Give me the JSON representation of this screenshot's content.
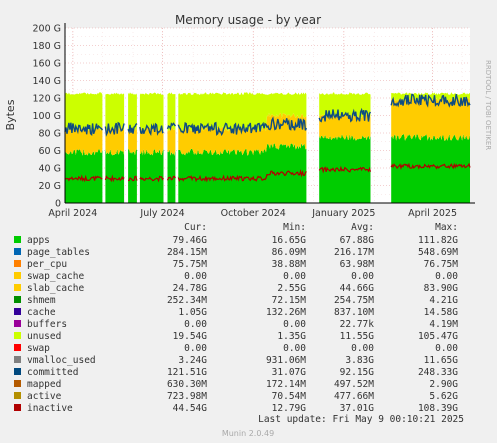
{
  "chart_data": {
    "type": "area",
    "title": "Memory usage - by year",
    "ylabel": "Bytes",
    "ylim": [
      0,
      200
    ],
    "y_unit": "G",
    "yticks": [
      "0",
      "20 G",
      "40 G",
      "60 G",
      "80 G",
      "100 G",
      "120 G",
      "140 G",
      "160 G",
      "180 G",
      "200 G"
    ],
    "xticks": [
      {
        "label": "April 2024",
        "x": "2024-04-01"
      },
      {
        "label": "July 2024",
        "x": "2024-07-01"
      },
      {
        "label": "October 2024",
        "x": "2024-10-01"
      },
      {
        "label": "January 2025",
        "x": "2025-01-01"
      },
      {
        "label": "April 2025",
        "x": "2025-04-01"
      }
    ],
    "xlim": [
      "2024-03-24",
      "2025-05-09"
    ],
    "gaps": [
      [
        "2024-05-02",
        "2024-05-04"
      ],
      [
        "2024-05-24",
        "2024-05-27"
      ],
      [
        "2024-06-06",
        "2024-06-08"
      ],
      [
        "2024-07-03",
        "2024-07-06"
      ],
      [
        "2024-07-15",
        "2024-07-17"
      ],
      [
        "2024-11-25",
        "2024-12-07"
      ],
      [
        "2025-01-29",
        "2025-02-18"
      ]
    ],
    "approx_stack_levels_G": [
      {
        "period": "2024-03-24..2024-10-15",
        "apps": 58,
        "slab_cache": 85,
        "unused_top": 125,
        "committed": 85,
        "inactive": 28
      },
      {
        "period": "2024-10-15..2024-11-25",
        "apps": 65,
        "slab_cache": 100,
        "unused_top": 125,
        "committed": 90,
        "inactive": 34
      },
      {
        "period": "2024-12-07..2025-01-29",
        "apps": 75,
        "slab_cache": 100,
        "unused_top": 125,
        "committed": 100,
        "inactive": 38
      },
      {
        "period": "2025-02-18..2025-05-09",
        "apps": 75,
        "slab_cache": 118,
        "unused_top": 125,
        "committed": 118,
        "inactive": 42
      }
    ],
    "columns": [
      "Cur:",
      "Min:",
      "Avg:",
      "Max:"
    ],
    "series": [
      {
        "name": "apps",
        "color": "#00cc00",
        "cur": "79.46G",
        "min": "16.65G",
        "avg": "67.88G",
        "max": "111.82G"
      },
      {
        "name": "page_tables",
        "color": "#0066b3",
        "cur": "284.15M",
        "min": "86.09M",
        "avg": "216.17M",
        "max": "548.69M"
      },
      {
        "name": "per_cpu",
        "color": "#ff8000",
        "cur": "75.75M",
        "min": "38.88M",
        "avg": "63.98M",
        "max": "76.75M"
      },
      {
        "name": "swap_cache",
        "color": "#ffcc00",
        "cur": "0.00",
        "min": "0.00",
        "avg": "0.00",
        "max": "0.00"
      },
      {
        "name": "slab_cache",
        "color": "#330099",
        "cur": "24.78G",
        "min": "2.55G",
        "avg": "44.66G",
        "max": "83.90G"
      },
      {
        "name": "shmem",
        "color": "#990099",
        "cur": "252.34M",
        "min": "72.15M",
        "avg": "254.75M",
        "max": "4.21G"
      },
      {
        "name": "cache",
        "color": "#ccff00",
        "cur": "1.05G",
        "min": "132.26M",
        "avg": "837.10M",
        "max": "14.58G"
      },
      {
        "name": "buffers",
        "color": "#ff0000",
        "cur": "0.00",
        "min": "0.00",
        "avg": "22.77k",
        "max": "4.19M"
      },
      {
        "name": "unused",
        "color": "#808080",
        "cur": "19.54G",
        "min": "1.35G",
        "avg": "11.55G",
        "max": "105.47G"
      },
      {
        "name": "swap",
        "color": "#008f00",
        "cur": "0.00",
        "min": "0.00",
        "avg": "0.00",
        "max": "0.00"
      },
      {
        "name": "vmalloc_used",
        "color": "#00487d",
        "cur": "3.24G",
        "min": "931.06M",
        "avg": "3.83G",
        "max": "11.65G"
      },
      {
        "name": "committed",
        "color": "#b35a00",
        "cur": "121.51G",
        "min": "31.07G",
        "avg": "92.15G",
        "max": "248.33G"
      },
      {
        "name": "mapped",
        "color": "#b38f00",
        "cur": "630.30M",
        "min": "172.14M",
        "avg": "497.52M",
        "max": "2.90G"
      },
      {
        "name": "active",
        "color": "#6b006b",
        "cur": "723.98M",
        "min": "70.54M",
        "avg": "477.66M",
        "max": "5.62G"
      },
      {
        "name": "inactive",
        "color": "#8f9900",
        "cur": "44.54G",
        "min": "12.79G",
        "avg": "37.01G",
        "max": "108.39G"
      }
    ],
    "legend_swatch_colors": [
      "#00cc00",
      "#0066b3",
      "#ff8000",
      "#ffcc00",
      "#ffcc00",
      "#008f00",
      "#330099",
      "#990099",
      "#ccff00",
      "#ff0000",
      "#808080",
      "#00487d",
      "#b35a00",
      "#b38f00",
      "#b00000"
    ],
    "area_colors": {
      "apps": "#00cc00",
      "slab_cache": "#ffcc00",
      "unused": "#ccff00",
      "committed": "#0f4c81",
      "inactive": "#b00000",
      "cache": "#008f00"
    },
    "last_update": "Last update: Fri May  9 00:10:21 2025",
    "side_label": "RRDTOOL / TOBI OETIKER",
    "footer": "Munin 2.0.49"
  }
}
